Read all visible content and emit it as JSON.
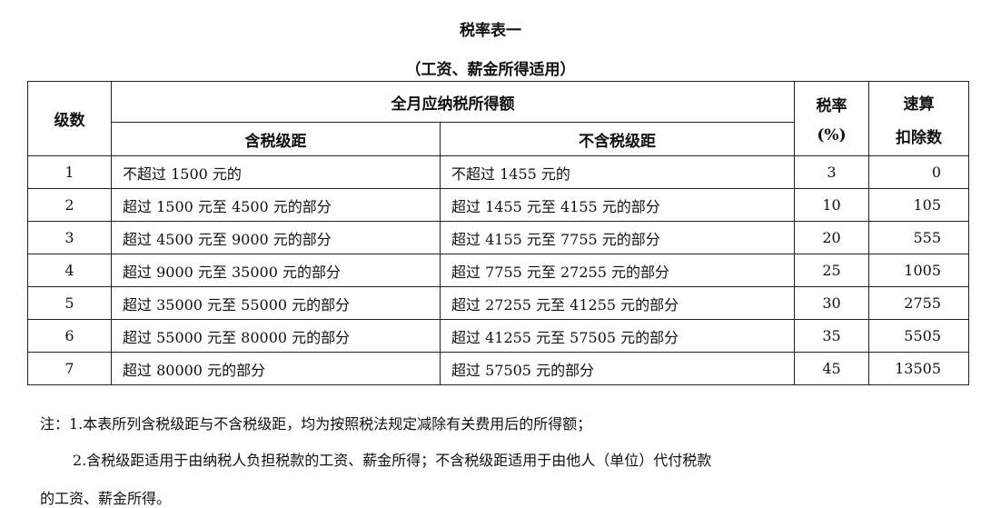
{
  "title": "税率表一",
  "subtitle": "（工资、薪金所得适用）",
  "table": {
    "headers": {
      "level": "级数",
      "income_group": "全月应纳税所得额",
      "with_tax": "含税级距",
      "without_tax": "不含税级距",
      "rate_line1": "税率",
      "rate_line2": "(%)",
      "deduction_line1": "速算",
      "deduction_line2": "扣除数"
    },
    "rows": [
      {
        "level": "1",
        "with_tax": "不超过 1500 元的",
        "without_tax": "不超过 1455 元的",
        "rate": "3",
        "deduction": "0"
      },
      {
        "level": "2",
        "with_tax": "超过 1500 元至 4500 元的部分",
        "without_tax": "超过 1455 元至 4155 元的部分",
        "rate": "10",
        "deduction": "105"
      },
      {
        "level": "3",
        "with_tax": "超过 4500 元至 9000 元的部分",
        "without_tax": "超过 4155 元至 7755 元的部分",
        "rate": "20",
        "deduction": "555"
      },
      {
        "level": "4",
        "with_tax": "超过 9000 元至 35000 元的部分",
        "without_tax": "超过 7755 元至 27255 元的部分",
        "rate": "25",
        "deduction": "1005"
      },
      {
        "level": "5",
        "with_tax": "超过 35000 元至 55000 元的部分",
        "without_tax": "超过 27255 元至 41255 元的部分",
        "rate": "30",
        "deduction": "2755"
      },
      {
        "level": "6",
        "with_tax": "超过 55000 元至 80000 元的部分",
        "without_tax": "超过 41255 元至 57505 元的部分",
        "rate": "35",
        "deduction": "5505"
      },
      {
        "level": "7",
        "with_tax": "超过 80000 元的部分",
        "without_tax": "超过 57505 元的部分",
        "rate": "45",
        "deduction": "13505"
      }
    ]
  },
  "notes": {
    "line1": "注：1.本表所列含税级距与不含税级距，均为按照税法规定减除有关费用后的所得额；",
    "line2": "2.含税级距适用于由纳税人负担税款的工资、薪金所得；不含税级距适用于由他人（单位）代付税款",
    "line3": "的工资、薪金所得。"
  }
}
